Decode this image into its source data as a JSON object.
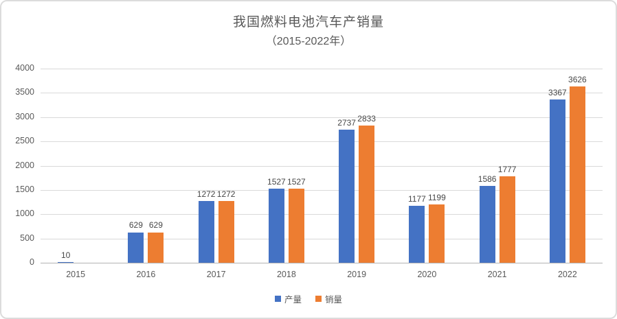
{
  "window": {
    "background": "#ffffff",
    "border_color": "#dcdcdc"
  },
  "chart_data": {
    "type": "bar",
    "title": "我国燃料电池汽车产销量",
    "subtitle": "（2015-2022年）",
    "xlabel": "",
    "ylabel": "",
    "categories": [
      "2015",
      "2016",
      "2017",
      "2018",
      "2019",
      "2020",
      "2021",
      "2022"
    ],
    "series": [
      {
        "key": "production",
        "name": "产量",
        "color": "#4472c4",
        "values": [
          10,
          629,
          1272,
          1527,
          2737,
          1177,
          1586,
          3367
        ],
        "labels": [
          "10",
          "629",
          "1272",
          "1527",
          "2737",
          "1177",
          "1586",
          "3367"
        ]
      },
      {
        "key": "sales",
        "name": "销量",
        "color": "#ed7d31",
        "values": [
          null,
          629,
          1272,
          1527,
          2833,
          1199,
          1777,
          3626
        ],
        "labels": [
          "",
          "629",
          "1272",
          "1527",
          "2833",
          "1199",
          "1777",
          "3626"
        ]
      }
    ],
    "ylim": [
      0,
      4000
    ],
    "yticks": [
      0,
      500,
      1000,
      1500,
      2000,
      2500,
      3000,
      3500,
      4000
    ],
    "grid": true,
    "data_labels": true,
    "legend_position": "bottom",
    "colors": {
      "text": "#595959",
      "data_label_text": "#464646",
      "gridline": "#d9d9d9",
      "axis_line": "#b3b3b3"
    }
  }
}
